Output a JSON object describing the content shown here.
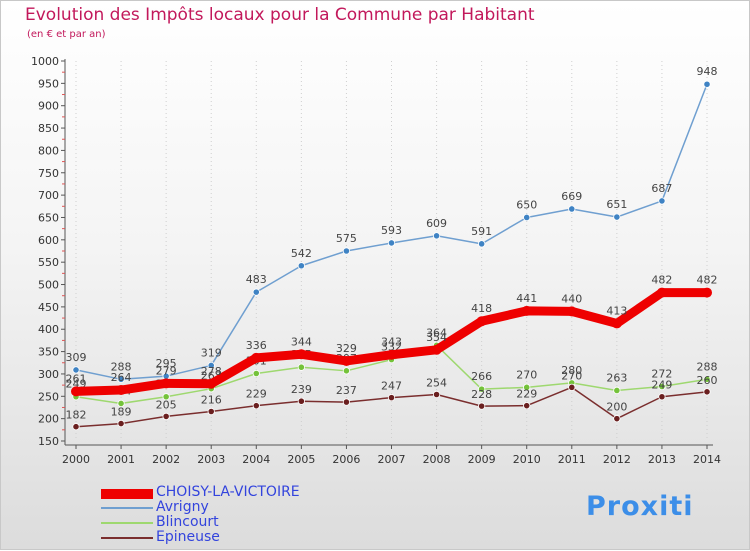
{
  "title": "Evolution des Impôts locaux pour la Commune par Habitant",
  "subtitle": "(en € et par an)",
  "brand": "Proxiti",
  "colors": {
    "title": "#c2185b",
    "legend_text": "#3344dd",
    "axis": "#555555"
  },
  "chart_data": {
    "type": "line",
    "title": "Evolution des Impôts locaux pour la Commune par Habitant",
    "ylabel": "(en € et par an)",
    "xlabel": "",
    "ylim": [
      150,
      1000
    ],
    "yticks": [
      150,
      200,
      250,
      300,
      350,
      400,
      450,
      500,
      550,
      600,
      650,
      700,
      750,
      800,
      850,
      900,
      950,
      1000
    ],
    "x": [
      "2000",
      "2001",
      "2002",
      "2003",
      "2004",
      "2005",
      "2006",
      "2007",
      "2008",
      "2009",
      "2010",
      "2011",
      "2012",
      "2013",
      "2014"
    ],
    "legend_position": "bottom-left",
    "series": [
      {
        "name": "Avrigny",
        "color": "#6f9fd0",
        "marker": "#3f83c4",
        "values": [
          309,
          288,
          295,
          319,
          483,
          542,
          575,
          593,
          609,
          591,
          650,
          669,
          651,
          687,
          948
        ],
        "labels": [
          "309",
          "288",
          "295",
          "319",
          "483",
          "542",
          "575",
          "593",
          "609",
          "591",
          "650",
          "669",
          "651",
          "687",
          "948"
        ]
      },
      {
        "name": "Blincourt",
        "color": "#9ed86f",
        "marker": "#74c23a",
        "values": [
          249,
          234,
          249,
          267,
          301,
          315,
          307,
          332,
          364,
          266,
          270,
          280,
          263,
          272,
          288
        ],
        "labels": [
          "249",
          "234",
          "249",
          "267",
          "301",
          "315",
          "307",
          "332",
          "364",
          "266",
          "270",
          "280",
          "263",
          "272",
          "288"
        ]
      },
      {
        "name": "Epineuse",
        "color": "#7a2e2e",
        "marker": "#6a1f1f",
        "values": [
          182,
          189,
          205,
          216,
          229,
          239,
          237,
          247,
          254,
          228,
          229,
          270,
          200,
          249,
          260
        ],
        "labels": [
          "182",
          "189",
          "205",
          "216",
          "229",
          "239",
          "237",
          "247",
          "254",
          "228",
          "229",
          "270",
          "200",
          "249",
          "260"
        ]
      },
      {
        "name": "CHOISY-LA-VICTOIRE",
        "color": "#ee0000",
        "marker": "#ee0000",
        "values": [
          261,
          264,
          279,
          278,
          336,
          344,
          329,
          343,
          354,
          418,
          441,
          440,
          413,
          482,
          482
        ],
        "labels": [
          "261",
          "264",
          "279",
          "278",
          "336",
          "344",
          "329",
          "343",
          "354",
          "418",
          "441",
          "440",
          "413",
          "482",
          "482"
        ]
      }
    ]
  },
  "legend": [
    {
      "label": "CHOISY-LA-VICTOIRE",
      "color": "#ee0000"
    },
    {
      "label": "Avrigny",
      "color": "#6f9fd0"
    },
    {
      "label": "Blincourt",
      "color": "#9ed86f"
    },
    {
      "label": "Epineuse",
      "color": "#7a2e2e"
    }
  ]
}
